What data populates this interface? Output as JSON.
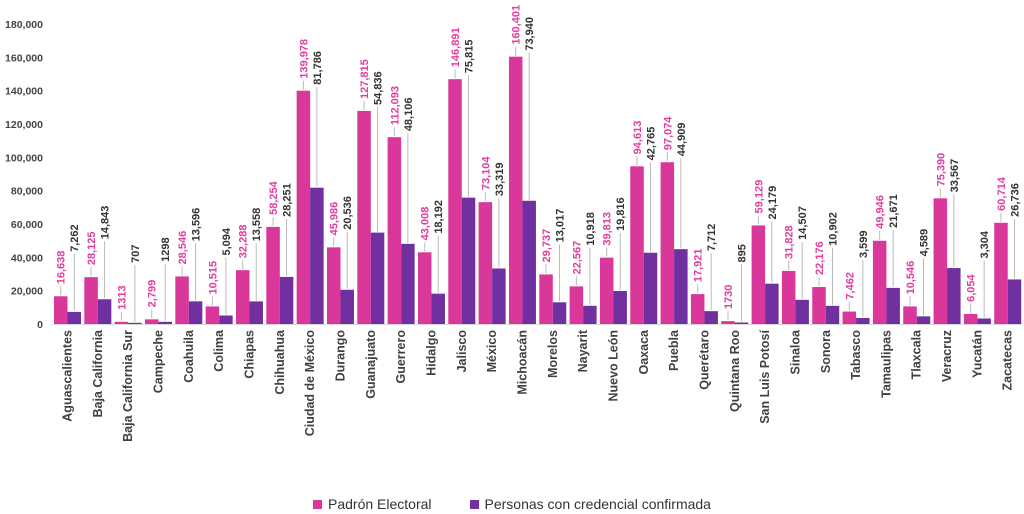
{
  "chart_data": {
    "type": "bar",
    "title": "",
    "xlabel": "",
    "ylabel": "",
    "ylim": [
      0,
      180000
    ],
    "yticks": [
      "0",
      "20,000",
      "40,000",
      "60,000",
      "80,000",
      "100,000",
      "120,000",
      "140,000",
      "160,000",
      "180,000"
    ],
    "grid": false,
    "legend_position": "bottom",
    "categories": [
      "Aguascalientes",
      "Baja California",
      "Baja California Sur",
      "Campeche",
      "Coahuila",
      "Colima",
      "Chiapas",
      "Chihuahua",
      "Ciudad de México",
      "Durango",
      "Guanajuato",
      "Guerrero",
      "Hidalgo",
      "Jalisco",
      "México",
      "Michoacán",
      "Morelos",
      "Nayarit",
      "Nuevo León",
      "Oaxaca",
      "Puebla",
      "Querétaro",
      "Quintana Roo",
      "San Luis Potosí",
      "Sinaloa",
      "Sonora",
      "Tabasco",
      "Tamaulipas",
      "Tlaxcala",
      "Veracruz",
      "Yucatán",
      "Zacatecas"
    ],
    "series": [
      {
        "name": "Padrón Electoral",
        "color": "#d9379a",
        "label_color": "#e23d9f",
        "values": [
          16638,
          28125,
          1313,
          2799,
          28546,
          10515,
          32288,
          58254,
          139978,
          45986,
          127815,
          112093,
          43008,
          146891,
          73104,
          160401,
          29737,
          22567,
          39813,
          94613,
          97074,
          17921,
          1730,
          59129,
          31828,
          22176,
          7462,
          49946,
          10546,
          75390,
          6054,
          60714
        ],
        "labels": [
          "16,638",
          "28,125",
          "1313",
          "2,799",
          "28,546",
          "10,515",
          "32,288",
          "58,254",
          "139,978",
          "45,986",
          "127,815",
          "112,093",
          "43,008",
          "146,891",
          "73,104",
          "160,401",
          "29,737",
          "22,567",
          "39,813",
          "94,613",
          "97,074",
          "17,921",
          "1730",
          "59,129",
          "31,828",
          "22,176",
          "7,462",
          "49,946",
          "10,546",
          "75,390",
          "6,054",
          "60,714"
        ]
      },
      {
        "name": "Personas con credencial confirmada",
        "color": "#7030a0",
        "label_color": "#333333",
        "values": [
          7262,
          14843,
          707,
          1298,
          13596,
          5094,
          13558,
          28251,
          81786,
          20536,
          54836,
          48106,
          18192,
          75815,
          33319,
          73940,
          13017,
          10918,
          19816,
          42765,
          44909,
          7712,
          895,
          24179,
          14507,
          10902,
          3599,
          21671,
          4589,
          33567,
          3304,
          26736
        ],
        "labels": [
          "7,262",
          "14,843",
          "707",
          "1298",
          "13,596",
          "5,094",
          "13,558",
          "28,251",
          "81,786",
          "20,536",
          "54,836",
          "48,106",
          "18,192",
          "75,815",
          "33,319",
          "73,940",
          "13,017",
          "10,918",
          "19,816",
          "42,765",
          "44,909",
          "7,712",
          "895",
          "24,179",
          "14,507",
          "10,902",
          "3,599",
          "21,671",
          "4,589",
          "33,567",
          "3,304",
          "26,736"
        ]
      }
    ]
  }
}
